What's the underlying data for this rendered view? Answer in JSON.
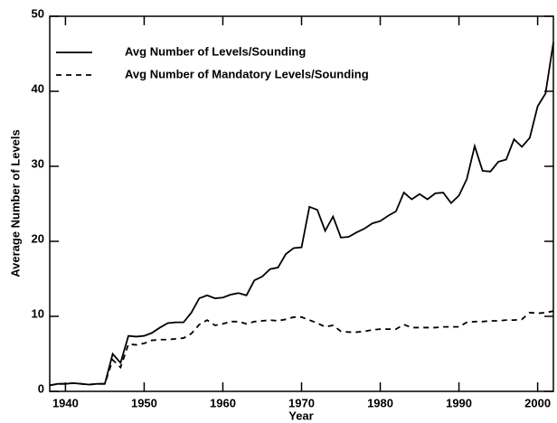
{
  "chart_data": {
    "type": "line",
    "xlabel": "Year",
    "ylabel": "Average Number of Levels",
    "x": [
      1938,
      1939,
      1940,
      1941,
      1942,
      1943,
      1944,
      1945,
      1946,
      1947,
      1948,
      1949,
      1950,
      1951,
      1952,
      1953,
      1954,
      1955,
      1956,
      1957,
      1958,
      1959,
      1960,
      1961,
      1962,
      1963,
      1964,
      1965,
      1966,
      1967,
      1968,
      1969,
      1970,
      1971,
      1972,
      1973,
      1974,
      1975,
      1976,
      1977,
      1978,
      1979,
      1980,
      1981,
      1982,
      1983,
      1984,
      1985,
      1986,
      1987,
      1988,
      1989,
      1990,
      1991,
      1992,
      1993,
      1994,
      1995,
      1996,
      1997,
      1998,
      1999,
      2000,
      2001,
      2002
    ],
    "series": [
      {
        "name": "Avg Number of Levels/Sounding",
        "color": "#000000",
        "dash": "solid",
        "values": [
          0.8,
          1.0,
          1.0,
          1.1,
          1.0,
          0.9,
          1.0,
          1.0,
          5.0,
          3.8,
          7.4,
          7.3,
          7.4,
          7.8,
          8.5,
          9.1,
          9.2,
          9.2,
          10.5,
          12.4,
          12.8,
          12.4,
          12.5,
          12.9,
          13.1,
          12.8,
          14.8,
          15.3,
          16.3,
          16.5,
          18.3,
          19.1,
          19.2,
          24.6,
          24.2,
          21.4,
          23.3,
          20.5,
          20.6,
          21.2,
          21.7,
          22.4,
          22.7,
          23.4,
          24.0,
          26.5,
          25.6,
          26.3,
          25.6,
          26.4,
          26.5,
          25.1,
          26.1,
          28.3,
          32.7,
          29.4,
          29.3,
          30.6,
          30.9,
          33.6,
          32.6,
          33.8,
          38.0,
          39.7,
          46.5
        ]
      },
      {
        "name": "Avg Number of Mandatory Levels/Sounding",
        "color": "#000000",
        "dash": "dashed",
        "values": [
          0.8,
          1.0,
          1.0,
          1.1,
          1.0,
          0.9,
          1.0,
          1.0,
          4.2,
          3.2,
          6.3,
          6.2,
          6.4,
          6.8,
          6.9,
          6.9,
          7.0,
          7.1,
          7.7,
          8.9,
          9.5,
          8.8,
          9.0,
          9.3,
          9.3,
          9.0,
          9.3,
          9.4,
          9.5,
          9.4,
          9.6,
          9.9,
          9.9,
          9.5,
          9.1,
          8.6,
          8.8,
          8.0,
          7.9,
          7.9,
          8.0,
          8.2,
          8.3,
          8.3,
          8.3,
          8.9,
          8.5,
          8.5,
          8.5,
          8.5,
          8.6,
          8.6,
          8.6,
          9.2,
          9.3,
          9.3,
          9.4,
          9.4,
          9.5,
          9.5,
          9.6,
          10.5,
          10.4,
          10.5,
          10.7
        ]
      }
    ],
    "xlim": [
      1938,
      2002
    ],
    "xticks": [
      1940,
      1950,
      1960,
      1970,
      1980,
      1990,
      2000
    ],
    "ylim": [
      0,
      50
    ],
    "yticks": [
      0,
      10,
      20,
      30,
      40,
      50
    ],
    "grid": false,
    "legend": "upper left"
  }
}
